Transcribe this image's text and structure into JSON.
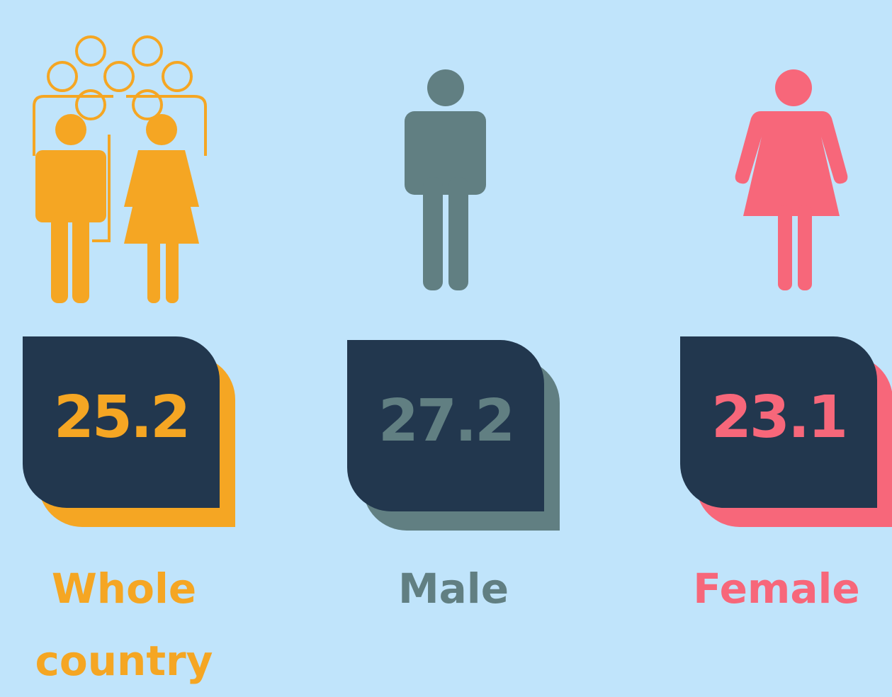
{
  "items": [
    {
      "value": 25.2,
      "label": "Whole country",
      "color": "#f5a623"
    },
    {
      "value": 27.2,
      "label": "Male",
      "color": "#617f82"
    },
    {
      "value": 23.1,
      "label": "Female",
      "color": "#f7677a"
    }
  ]
}
